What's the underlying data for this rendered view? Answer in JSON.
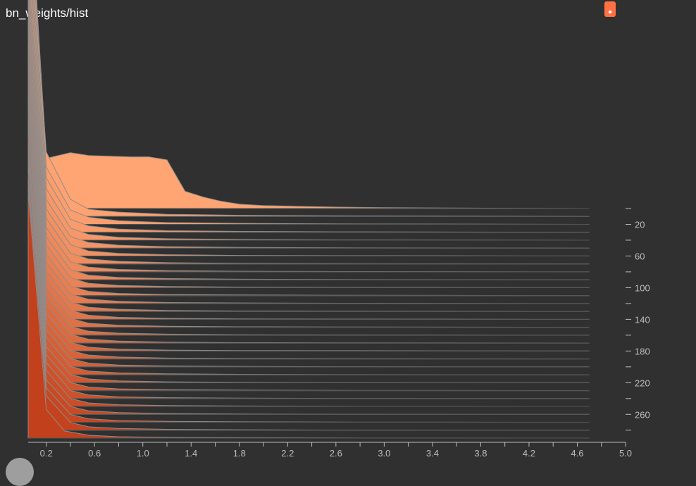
{
  "header": {
    "title": "bn_weights/hist"
  },
  "colors": {
    "background": "#303030",
    "newest_step": "#ffa573",
    "oldest_step": "#c2401b",
    "stroke": "#8d8d8d",
    "axis": "#bdbdbd",
    "accent": "#ff7043"
  },
  "chart_data": {
    "type": "histogram-offset",
    "title": "bn_weights/hist",
    "xlim": [
      0.05,
      5.0
    ],
    "x_tick_labels": [
      "0.2",
      "0.6",
      "1.0",
      "1.4",
      "1.8",
      "2.2",
      "2.6",
      "3.0",
      "3.4",
      "3.8",
      "4.2",
      "4.6",
      "5.0"
    ],
    "x_tick_values": [
      0.2,
      0.6,
      1.0,
      1.4,
      1.8,
      2.2,
      2.6,
      3.0,
      3.4,
      3.8,
      4.2,
      4.6,
      5.0
    ],
    "step_axis_labels": [
      "20",
      "60",
      "100",
      "140",
      "180",
      "220",
      "260"
    ],
    "step_axis_values": [
      20,
      60,
      100,
      140,
      180,
      220,
      260
    ],
    "step_axis_minor_values": [
      0,
      40,
      80,
      120,
      160,
      200,
      240,
      280
    ],
    "step_range": [
      0,
      290
    ],
    "series": [
      {
        "step": 0,
        "x": [
          0.05,
          0.2,
          0.4,
          0.55,
          0.9,
          1.05,
          1.2,
          1.35,
          1.5,
          1.65,
          1.8,
          2.0,
          2.3,
          2.6,
          3.0,
          3.5,
          4.0,
          4.7
        ],
        "y": [
          0.97,
          0.35,
          0.39,
          0.37,
          0.36,
          0.36,
          0.34,
          0.12,
          0.08,
          0.05,
          0.03,
          0.02,
          0.015,
          0.01,
          0.006,
          0.004,
          0.002,
          0.0
        ]
      },
      {
        "step": 10,
        "x": [
          0.05,
          0.2,
          0.4,
          0.55,
          0.8,
          1.2,
          1.8,
          2.6,
          4.7
        ],
        "y": [
          0.9,
          0.45,
          0.12,
          0.05,
          0.03,
          0.015,
          0.008,
          0.004,
          0.0
        ]
      },
      {
        "step": 20,
        "x": [
          0.05,
          0.2,
          0.4,
          0.55,
          0.8,
          1.2,
          1.8,
          2.6,
          4.7
        ],
        "y": [
          0.88,
          0.4,
          0.1,
          0.05,
          0.025,
          0.012,
          0.007,
          0.003,
          0.0
        ]
      },
      {
        "step": 30,
        "x": [
          0.05,
          0.2,
          0.4,
          0.55,
          0.8,
          1.2,
          1.8,
          2.6,
          4.7
        ],
        "y": [
          0.86,
          0.38,
          0.09,
          0.045,
          0.022,
          0.011,
          0.006,
          0.003,
          0.0
        ]
      },
      {
        "step": 40,
        "x": [
          0.05,
          0.2,
          0.4,
          0.55,
          0.8,
          1.2,
          1.8,
          2.6,
          4.7
        ],
        "y": [
          0.84,
          0.36,
          0.085,
          0.04,
          0.02,
          0.01,
          0.005,
          0.002,
          0.0
        ]
      },
      {
        "step": 50,
        "x": [
          0.05,
          0.2,
          0.4,
          0.55,
          0.8,
          1.2,
          1.8,
          2.6,
          4.7
        ],
        "y": [
          0.82,
          0.34,
          0.08,
          0.04,
          0.02,
          0.01,
          0.005,
          0.002,
          0.0
        ]
      },
      {
        "step": 60,
        "x": [
          0.05,
          0.2,
          0.4,
          0.55,
          0.8,
          1.2,
          1.8,
          2.6,
          4.7
        ],
        "y": [
          0.8,
          0.33,
          0.08,
          0.035,
          0.018,
          0.009,
          0.004,
          0.002,
          0.0
        ]
      },
      {
        "step": 70,
        "x": [
          0.05,
          0.2,
          0.4,
          0.55,
          0.8,
          1.2,
          1.8,
          2.6,
          4.7
        ],
        "y": [
          0.79,
          0.32,
          0.075,
          0.035,
          0.018,
          0.009,
          0.004,
          0.002,
          0.0
        ]
      },
      {
        "step": 80,
        "x": [
          0.05,
          0.2,
          0.4,
          0.55,
          0.8,
          1.2,
          1.8,
          2.6,
          4.7
        ],
        "y": [
          0.78,
          0.31,
          0.07,
          0.033,
          0.017,
          0.008,
          0.004,
          0.002,
          0.0
        ]
      },
      {
        "step": 90,
        "x": [
          0.05,
          0.2,
          0.4,
          0.55,
          0.8,
          1.2,
          1.8,
          2.6,
          4.7
        ],
        "y": [
          0.77,
          0.3,
          0.07,
          0.032,
          0.016,
          0.008,
          0.004,
          0.002,
          0.0
        ]
      },
      {
        "step": 100,
        "x": [
          0.05,
          0.2,
          0.4,
          0.55,
          0.8,
          1.2,
          1.8,
          2.6,
          4.7
        ],
        "y": [
          0.76,
          0.3,
          0.068,
          0.031,
          0.016,
          0.008,
          0.004,
          0.002,
          0.0
        ]
      },
      {
        "step": 110,
        "x": [
          0.05,
          0.2,
          0.4,
          0.55,
          0.8,
          1.2,
          1.8,
          2.6,
          4.7
        ],
        "y": [
          0.75,
          0.29,
          0.066,
          0.03,
          0.015,
          0.007,
          0.004,
          0.002,
          0.0
        ]
      },
      {
        "step": 120,
        "x": [
          0.05,
          0.2,
          0.4,
          0.55,
          0.8,
          1.2,
          1.8,
          2.6,
          4.7
        ],
        "y": [
          0.75,
          0.29,
          0.065,
          0.03,
          0.015,
          0.007,
          0.004,
          0.002,
          0.0
        ]
      },
      {
        "step": 130,
        "x": [
          0.05,
          0.2,
          0.4,
          0.55,
          0.8,
          1.2,
          1.8,
          2.6,
          4.7
        ],
        "y": [
          0.74,
          0.28,
          0.064,
          0.029,
          0.015,
          0.007,
          0.003,
          0.002,
          0.0
        ]
      },
      {
        "step": 140,
        "x": [
          0.05,
          0.2,
          0.4,
          0.55,
          0.8,
          1.2,
          1.8,
          2.6,
          4.7
        ],
        "y": [
          0.74,
          0.28,
          0.063,
          0.029,
          0.014,
          0.007,
          0.003,
          0.002,
          0.0
        ]
      },
      {
        "step": 150,
        "x": [
          0.05,
          0.2,
          0.4,
          0.55,
          0.8,
          1.2,
          1.8,
          2.6,
          4.7
        ],
        "y": [
          0.73,
          0.27,
          0.062,
          0.028,
          0.014,
          0.007,
          0.003,
          0.002,
          0.0
        ]
      },
      {
        "step": 160,
        "x": [
          0.05,
          0.2,
          0.4,
          0.55,
          0.8,
          1.2,
          1.8,
          2.6,
          4.7
        ],
        "y": [
          0.73,
          0.27,
          0.061,
          0.028,
          0.014,
          0.007,
          0.003,
          0.002,
          0.0
        ]
      },
      {
        "step": 170,
        "x": [
          0.05,
          0.2,
          0.4,
          0.55,
          0.8,
          1.2,
          1.8,
          2.6,
          4.7
        ],
        "y": [
          0.72,
          0.27,
          0.06,
          0.027,
          0.014,
          0.007,
          0.003,
          0.002,
          0.0
        ]
      },
      {
        "step": 180,
        "x": [
          0.05,
          0.2,
          0.4,
          0.55,
          0.8,
          1.2,
          1.8,
          2.6,
          4.7
        ],
        "y": [
          0.72,
          0.26,
          0.06,
          0.027,
          0.013,
          0.006,
          0.003,
          0.002,
          0.0
        ]
      },
      {
        "step": 190,
        "x": [
          0.05,
          0.2,
          0.4,
          0.55,
          0.8,
          1.2,
          1.8,
          2.6,
          4.7
        ],
        "y": [
          0.72,
          0.26,
          0.059,
          0.027,
          0.013,
          0.006,
          0.003,
          0.002,
          0.0
        ]
      },
      {
        "step": 200,
        "x": [
          0.05,
          0.2,
          0.4,
          0.55,
          0.8,
          1.2,
          1.8,
          2.6,
          4.7
        ],
        "y": [
          0.71,
          0.26,
          0.058,
          0.026,
          0.013,
          0.006,
          0.003,
          0.001,
          0.0
        ]
      },
      {
        "step": 210,
        "x": [
          0.05,
          0.2,
          0.4,
          0.55,
          0.8,
          1.2,
          1.8,
          2.6,
          4.7
        ],
        "y": [
          0.71,
          0.26,
          0.058,
          0.026,
          0.013,
          0.006,
          0.003,
          0.001,
          0.0
        ]
      },
      {
        "step": 220,
        "x": [
          0.05,
          0.2,
          0.4,
          0.55,
          0.8,
          1.2,
          1.8,
          2.6,
          4.7
        ],
        "y": [
          0.71,
          0.25,
          0.057,
          0.026,
          0.013,
          0.006,
          0.003,
          0.001,
          0.0
        ]
      },
      {
        "step": 230,
        "x": [
          0.05,
          0.2,
          0.4,
          0.55,
          0.8,
          1.2,
          1.8,
          2.6,
          4.7
        ],
        "y": [
          0.7,
          0.25,
          0.057,
          0.025,
          0.012,
          0.006,
          0.003,
          0.001,
          0.0
        ]
      },
      {
        "step": 240,
        "x": [
          0.05,
          0.2,
          0.4,
          0.55,
          0.8,
          1.2,
          1.8,
          2.6,
          4.7
        ],
        "y": [
          0.7,
          0.25,
          0.056,
          0.025,
          0.012,
          0.006,
          0.003,
          0.001,
          0.0
        ]
      },
      {
        "step": 250,
        "x": [
          0.05,
          0.2,
          0.4,
          0.55,
          0.8,
          1.2,
          1.8,
          2.6,
          4.7
        ],
        "y": [
          0.7,
          0.25,
          0.056,
          0.025,
          0.012,
          0.006,
          0.003,
          0.001,
          0.0
        ]
      },
      {
        "step": 260,
        "x": [
          0.05,
          0.2,
          0.4,
          0.55,
          0.8,
          1.2,
          1.8,
          2.6,
          4.7
        ],
        "y": [
          0.7,
          0.24,
          0.055,
          0.025,
          0.012,
          0.006,
          0.003,
          0.001,
          0.0
        ]
      },
      {
        "step": 270,
        "x": [
          0.05,
          0.2,
          0.4,
          0.55,
          0.8,
          1.2,
          1.8,
          2.6,
          4.7
        ],
        "y": [
          0.69,
          0.24,
          0.055,
          0.024,
          0.012,
          0.006,
          0.003,
          0.001,
          0.0
        ]
      },
      {
        "step": 280,
        "x": [
          0.05,
          0.2,
          0.4,
          0.55,
          0.8,
          1.2,
          1.8,
          2.6,
          4.7
        ],
        "y": [
          0.69,
          0.24,
          0.054,
          0.024,
          0.012,
          0.006,
          0.003,
          0.001,
          0.0
        ]
      },
      {
        "step": 290,
        "x": [
          0.05,
          0.2,
          0.35,
          0.55,
          0.8,
          1.2,
          1.8,
          2.6,
          4.7
        ],
        "y": [
          0.69,
          0.2,
          0.05,
          0.02,
          0.01,
          0.005,
          0.003,
          0.001,
          0.0
        ]
      }
    ]
  }
}
